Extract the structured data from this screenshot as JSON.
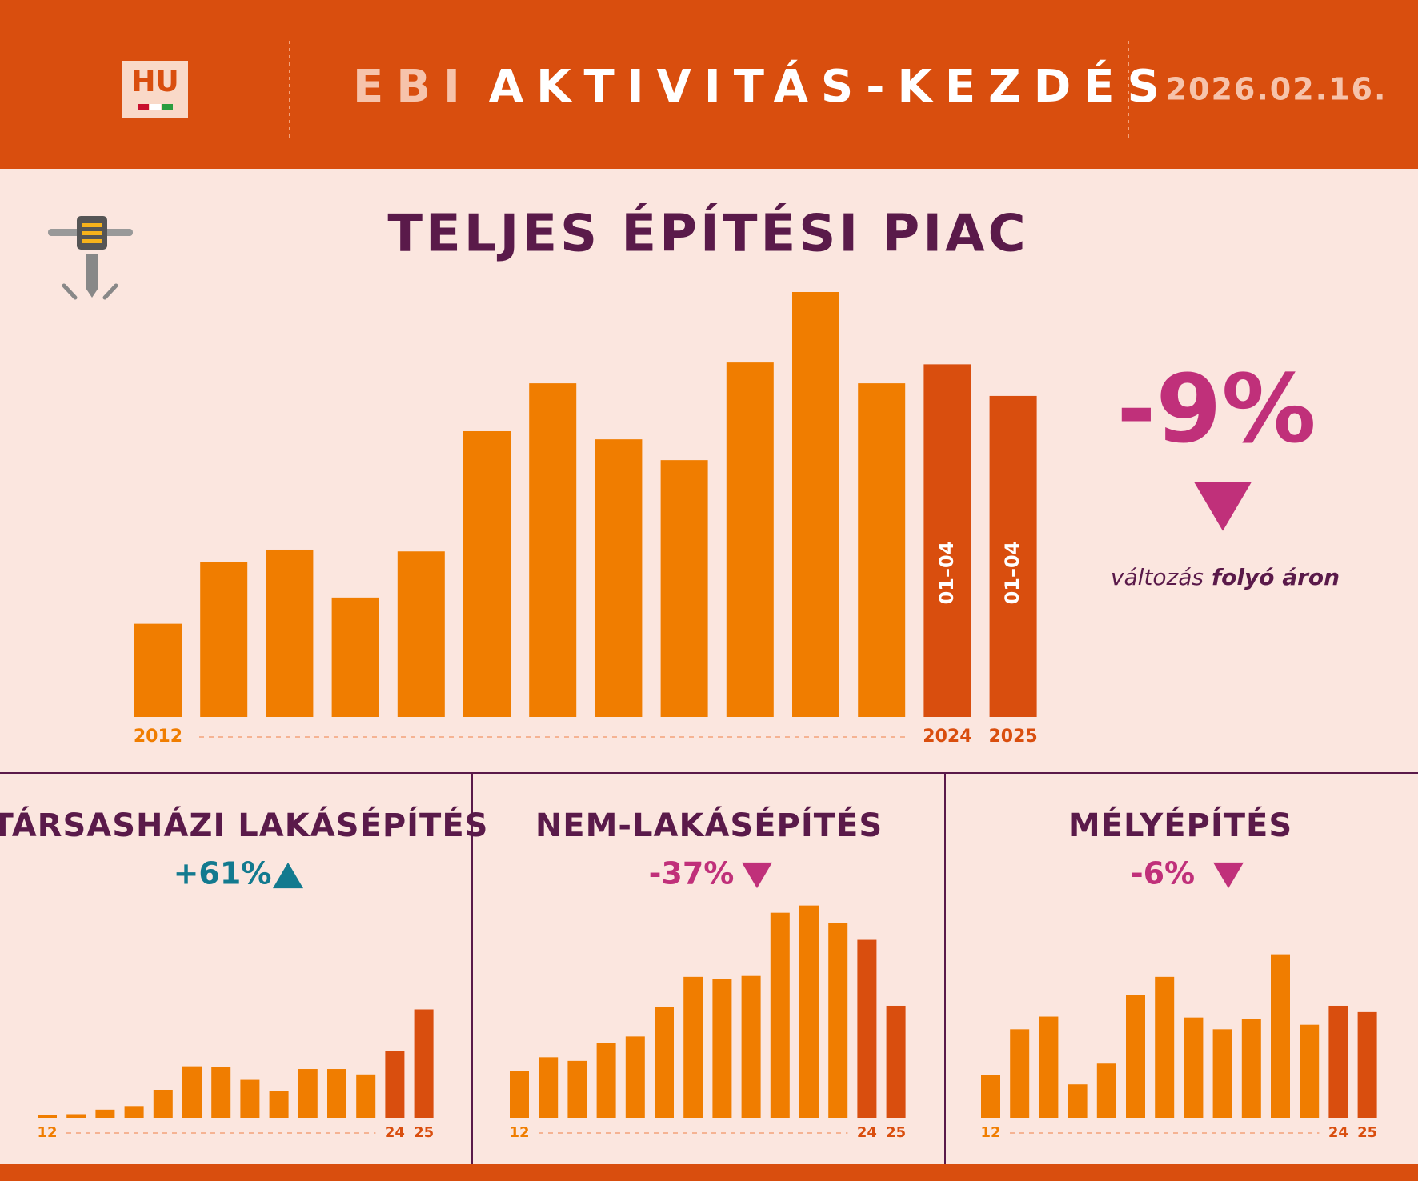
{
  "header": {
    "logo": "HU",
    "title_light": "EBI",
    "title": "AKTIVITÁS-KEZDÉS",
    "date": "2026.02.16."
  },
  "chart_data": [
    {
      "type": "bar",
      "title": "TELJES ÉPÍTÉSI PIAC",
      "categories": [
        "2012",
        null,
        null,
        null,
        null,
        null,
        null,
        null,
        null,
        null,
        null,
        null,
        "2024",
        "2025"
      ],
      "values": [
        103,
        171,
        185,
        132,
        183,
        316,
        369,
        307,
        284,
        392,
        470,
        369,
        390,
        355
      ],
      "colors": [
        "#f07d00",
        "#f07d00",
        "#f07d00",
        "#f07d00",
        "#f07d00",
        "#f07d00",
        "#f07d00",
        "#f07d00",
        "#f07d00",
        "#f07d00",
        "#f07d00",
        "#f07d00",
        "#d94e0e",
        "#d94e0e"
      ],
      "bar_annotations": [
        null,
        null,
        null,
        null,
        null,
        null,
        null,
        null,
        null,
        null,
        null,
        null,
        "01–04",
        "01–04"
      ],
      "ylim": [
        0,
        470
      ],
      "change": {
        "value": -9,
        "label": "-9%"
      },
      "trend": "down",
      "change_color": "#c0307a",
      "change_note": "változás",
      "change_note_bold": "folyó áron"
    },
    {
      "type": "bar",
      "title": "TÁRSASHÁZI LAKÁSÉPÍTÉS",
      "categories": [
        "12",
        null,
        null,
        null,
        null,
        null,
        null,
        null,
        null,
        null,
        null,
        null,
        "24",
        "25"
      ],
      "values": [
        3,
        4,
        9,
        13,
        31,
        57,
        56,
        42,
        30,
        54,
        54,
        48,
        74,
        120
      ],
      "colors": [
        "#f07d00",
        "#f07d00",
        "#f07d00",
        "#f07d00",
        "#f07d00",
        "#f07d00",
        "#f07d00",
        "#f07d00",
        "#f07d00",
        "#f07d00",
        "#f07d00",
        "#f07d00",
        "#d94e0e",
        "#d94e0e"
      ],
      "ylim": [
        0,
        240
      ],
      "change": {
        "value": 61,
        "label": "+61%"
      },
      "trend": "up",
      "change_color": "#127a8f"
    },
    {
      "type": "bar",
      "title": "NEM-LAKÁSÉPÍTÉS",
      "categories": [
        "12",
        null,
        null,
        null,
        null,
        null,
        null,
        null,
        null,
        null,
        null,
        null,
        "24",
        "25"
      ],
      "values": [
        52,
        67,
        63,
        83,
        90,
        123,
        156,
        154,
        157,
        227,
        235,
        216,
        197,
        124
      ],
      "colors": [
        "#f07d00",
        "#f07d00",
        "#f07d00",
        "#f07d00",
        "#f07d00",
        "#f07d00",
        "#f07d00",
        "#f07d00",
        "#f07d00",
        "#f07d00",
        "#f07d00",
        "#f07d00",
        "#d94e0e",
        "#d94e0e"
      ],
      "ylim": [
        0,
        240
      ],
      "change": {
        "value": -37,
        "label": "-37%"
      },
      "trend": "down",
      "change_color": "#c0307a"
    },
    {
      "type": "bar",
      "title": "MÉLYÉPÍTÉS",
      "categories": [
        "12",
        null,
        null,
        null,
        null,
        null,
        null,
        null,
        null,
        null,
        null,
        null,
        "24",
        "25"
      ],
      "values": [
        47,
        98,
        112,
        37,
        60,
        136,
        156,
        111,
        98,
        109,
        181,
        103,
        124,
        117
      ],
      "colors": [
        "#f07d00",
        "#f07d00",
        "#f07d00",
        "#f07d00",
        "#f07d00",
        "#f07d00",
        "#f07d00",
        "#f07d00",
        "#f07d00",
        "#f07d00",
        "#f07d00",
        "#f07d00",
        "#d94e0e",
        "#d94e0e"
      ],
      "ylim": [
        0,
        240
      ],
      "change": {
        "value": -6,
        "label": "-6%"
      },
      "trend": "down",
      "change_color": "#c0307a"
    }
  ]
}
